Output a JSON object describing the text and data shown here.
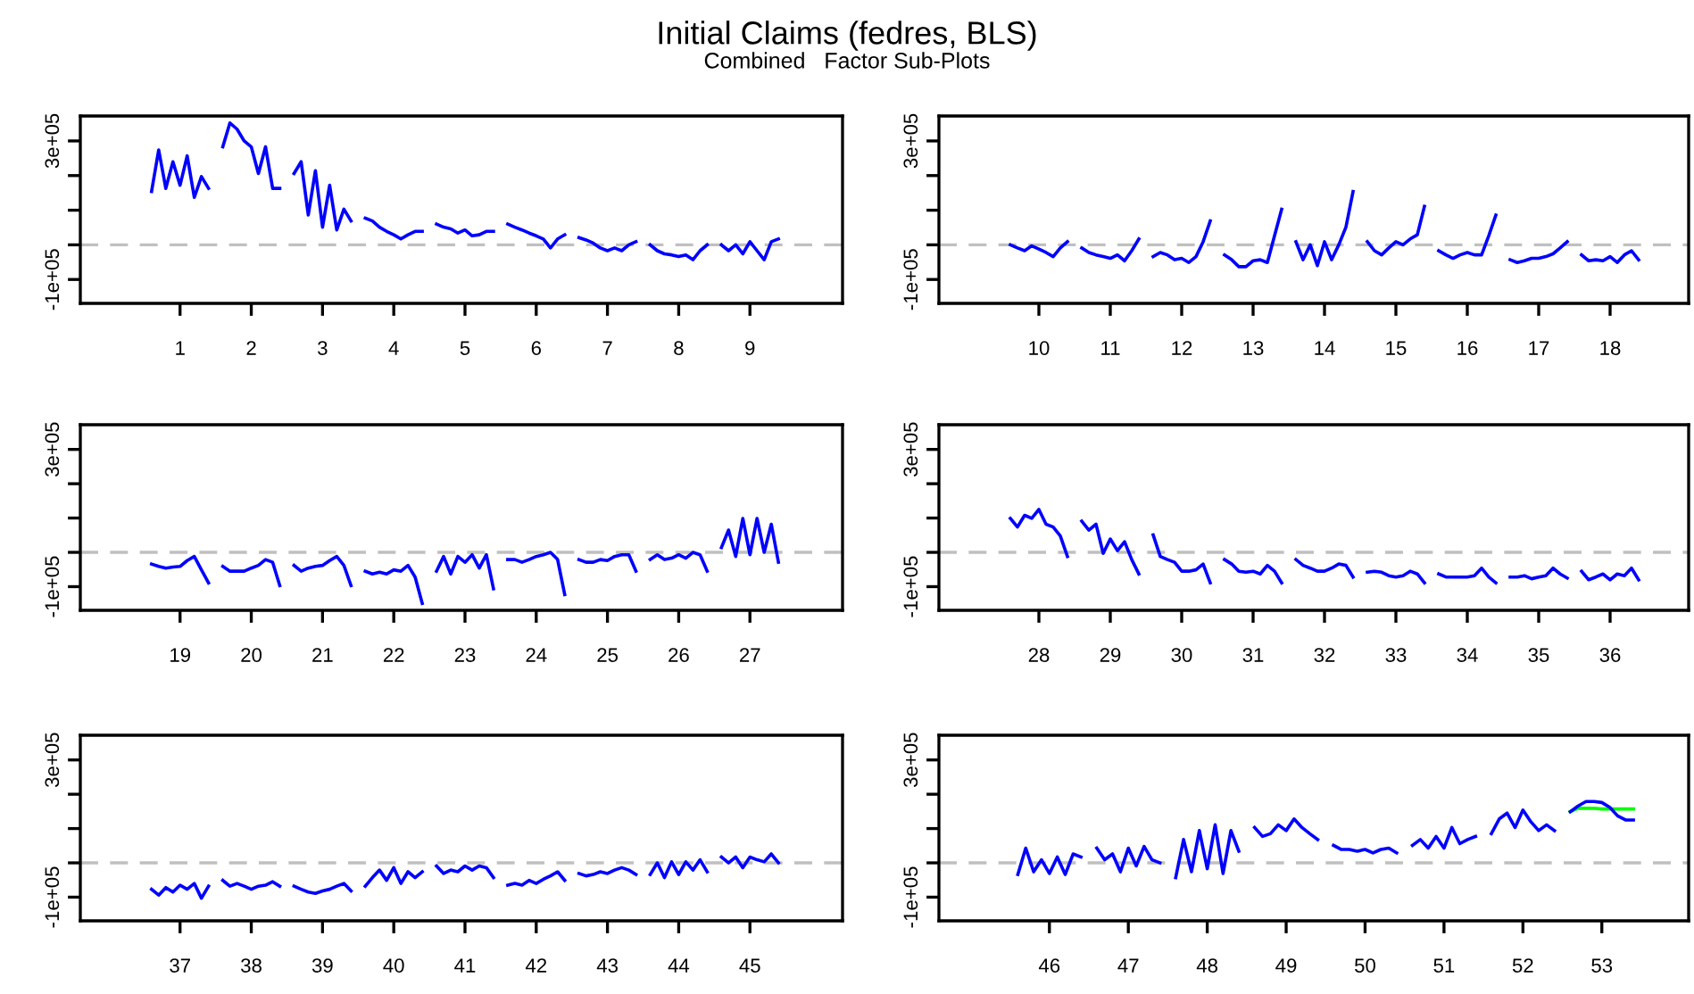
{
  "chart_data": [
    {
      "type": "line",
      "title": "Initial Claims (fedres, BLS)",
      "subtitle": "Combined   Factor Sub-Plots",
      "xlim": [
        -0.4,
        10.3
      ],
      "xticks": [
        1,
        2,
        3,
        4,
        5,
        6,
        7,
        8,
        9
      ],
      "ylim": [
        -169000,
        372000
      ],
      "yticks": [
        {
          "value": -100000,
          "label": "-1e+05"
        },
        {
          "value": 0,
          "label": null
        },
        {
          "value": 100000,
          "label": null
        },
        {
          "value": 200000,
          "label": null
        },
        {
          "value": 300000,
          "label": "3e+05"
        }
      ],
      "ref_lines": [
        {
          "axis": "y",
          "value": 0,
          "color": "#c0c0c0",
          "line_style": "dashed"
        }
      ],
      "series": [
        {
          "color": "#0000ff",
          "x": [
            0.6,
            0.7,
            0.8,
            0.9,
            1,
            1.1,
            1.2,
            1.3,
            1.4
          ],
          "values": [
            154000,
            274000,
            163000,
            240000,
            172000,
            257000,
            137000,
            197000,
            163000
          ]
        },
        {
          "color": "#0000ff",
          "x": [
            1.6,
            1.7,
            1.8,
            1.9,
            2,
            2.1,
            2.2,
            2.3,
            2.4
          ],
          "values": [
            283000,
            352000,
            334000,
            300000,
            283000,
            206000,
            283000,
            163000,
            163000
          ]
        },
        {
          "color": "#0000ff",
          "x": [
            2.6,
            2.7,
            2.8,
            2.9,
            3,
            3.1,
            3.2,
            3.3,
            3.4
          ],
          "values": [
            206000,
            240000,
            86000,
            214000,
            51000,
            172000,
            43000,
            103000,
            69000
          ]
        },
        {
          "color": "#0000ff",
          "x": [
            3.6,
            3.7,
            3.8,
            3.9,
            4,
            4.1,
            4.2,
            4.3,
            4.4
          ],
          "values": [
            77000,
            69000,
            51000,
            39000,
            29000,
            17000,
            29000,
            39000,
            39000
          ]
        },
        {
          "color": "#0000ff",
          "x": [
            4.6,
            4.7,
            4.8,
            4.9,
            5,
            5.1,
            5.2,
            5.3,
            5.4
          ],
          "values": [
            60000,
            51000,
            46000,
            34000,
            43000,
            26000,
            29000,
            39000,
            39000
          ]
        },
        {
          "color": "#0000ff",
          "x": [
            5.6,
            5.7,
            5.8,
            5.9,
            6,
            6.1,
            6.2,
            6.3,
            6.4
          ],
          "values": [
            60000,
            51000,
            43000,
            34000,
            26000,
            17000,
            -9000,
            17000,
            29000
          ]
        },
        {
          "color": "#0000ff",
          "x": [
            6.6,
            6.7,
            6.8,
            6.9,
            7,
            7.1,
            7.2,
            7.3,
            7.4
          ],
          "values": [
            21000,
            14000,
            5000,
            -9000,
            -17000,
            -9000,
            -17000,
            0,
            9000
          ]
        },
        {
          "color": "#0000ff",
          "x": [
            7.6,
            7.7,
            7.8,
            7.9,
            8,
            8.1,
            8.2,
            8.3,
            8.4
          ],
          "values": [
            0,
            -17000,
            -26000,
            -29000,
            -34000,
            -29000,
            -43000,
            -17000,
            0
          ]
        },
        {
          "color": "#0000ff",
          "x": [
            8.6,
            8.7,
            8.8,
            8.9,
            9,
            9.1,
            9.2,
            9.3,
            9.4
          ],
          "values": [
            0,
            -17000,
            0,
            -26000,
            9000,
            -17000,
            -43000,
            9000,
            17000
          ]
        }
      ]
    },
    {
      "type": "line",
      "xlim": [
        8.6,
        19.1
      ],
      "xticks": [
        10,
        11,
        12,
        13,
        14,
        15,
        16,
        17,
        18
      ],
      "ylim": [
        -169000,
        372000
      ],
      "yticks": [
        {
          "value": -100000,
          "label": "-1e+05"
        },
        {
          "value": 0,
          "label": null
        },
        {
          "value": 100000,
          "label": null
        },
        {
          "value": 200000,
          "label": null
        },
        {
          "value": 300000,
          "label": "3e+05"
        }
      ],
      "ref_lines": [
        {
          "axis": "y",
          "value": 0,
          "color": "#c0c0c0",
          "line_style": "dashed"
        }
      ],
      "series": [
        {
          "color": "#0000ff",
          "x": [
            9.6,
            9.7,
            9.8,
            9.9,
            10,
            10.1,
            10.2,
            10.3,
            10.4
          ],
          "values": [
            0,
            -9000,
            -17000,
            -3000,
            -12000,
            -22000,
            -34000,
            -9000,
            9000
          ]
        },
        {
          "color": "#0000ff",
          "x": [
            10.6,
            10.7,
            10.8,
            10.9,
            11,
            11.1,
            11.2,
            11.3,
            11.4
          ],
          "values": [
            -9000,
            -22000,
            -29000,
            -34000,
            -39000,
            -29000,
            -46000,
            -17000,
            17000
          ]
        },
        {
          "color": "#0000ff",
          "x": [
            11.6,
            11.7,
            11.8,
            11.9,
            12,
            12.1,
            12.2,
            12.3,
            12.4
          ],
          "values": [
            -34000,
            -22000,
            -29000,
            -43000,
            -39000,
            -51000,
            -34000,
            9000,
            69000
          ]
        },
        {
          "color": "#0000ff",
          "x": [
            12.6,
            12.7,
            12.8,
            12.9,
            13,
            13.1,
            13.2,
            13.3,
            13.4
          ],
          "values": [
            -29000,
            -43000,
            -63000,
            -63000,
            -46000,
            -43000,
            -51000,
            26000,
            103000
          ]
        },
        {
          "color": "#0000ff",
          "x": [
            13.6,
            13.7,
            13.8,
            13.9,
            14,
            14.1,
            14.2,
            14.3,
            14.4
          ],
          "values": [
            9000,
            -43000,
            0,
            -60000,
            9000,
            -43000,
            0,
            51000,
            154000
          ]
        },
        {
          "color": "#0000ff",
          "x": [
            14.6,
            14.7,
            14.8,
            14.9,
            15,
            15.1,
            15.2,
            15.3,
            15.4
          ],
          "values": [
            9000,
            -17000,
            -29000,
            -9000,
            9000,
            0,
            17000,
            29000,
            111000
          ]
        },
        {
          "color": "#0000ff",
          "x": [
            15.6,
            15.7,
            15.8,
            15.9,
            16,
            16.1,
            16.2,
            16.3,
            16.4
          ],
          "values": [
            -17000,
            -29000,
            -39000,
            -29000,
            -22000,
            -29000,
            -29000,
            26000,
            86000
          ]
        },
        {
          "color": "#0000ff",
          "x": [
            16.6,
            16.7,
            16.8,
            16.9,
            17,
            17.1,
            17.2,
            17.3,
            17.4
          ],
          "values": [
            -43000,
            -51000,
            -46000,
            -39000,
            -39000,
            -34000,
            -26000,
            -9000,
            9000
          ]
        },
        {
          "color": "#0000ff",
          "x": [
            17.6,
            17.7,
            17.8,
            17.9,
            18,
            18.1,
            18.2,
            18.3,
            18.4
          ],
          "values": [
            -29000,
            -46000,
            -43000,
            -46000,
            -34000,
            -51000,
            -29000,
            -17000,
            -43000
          ]
        }
      ]
    },
    {
      "type": "line",
      "xlim": [
        17.6,
        28.3
      ],
      "xticks": [
        19,
        20,
        21,
        22,
        23,
        24,
        25,
        26,
        27
      ],
      "ylim": [
        -169000,
        372000
      ],
      "yticks": [
        {
          "value": -100000,
          "label": "-1e+05"
        },
        {
          "value": 0,
          "label": null
        },
        {
          "value": 100000,
          "label": null
        },
        {
          "value": 200000,
          "label": null
        },
        {
          "value": 300000,
          "label": "3e+05"
        }
      ],
      "ref_lines": [
        {
          "axis": "y",
          "value": 0,
          "color": "#c0c0c0",
          "line_style": "dashed"
        }
      ],
      "series": [
        {
          "color": "#0000ff",
          "x": [
            18.6,
            18.7,
            18.8,
            18.9,
            19,
            19.1,
            19.2,
            19.3,
            19.4
          ],
          "values": [
            -34000,
            -41000,
            -46000,
            -43000,
            -41000,
            -24000,
            -12000,
            -51000,
            -89000
          ]
        },
        {
          "color": "#0000ff",
          "x": [
            19.6,
            19.7,
            19.8,
            19.9,
            20,
            20.1,
            20.2,
            20.3,
            20.4
          ],
          "values": [
            -41000,
            -55000,
            -55000,
            -55000,
            -46000,
            -38000,
            -21000,
            -29000,
            -97000
          ]
        },
        {
          "color": "#0000ff",
          "x": [
            20.6,
            20.7,
            20.8,
            20.9,
            21,
            21.1,
            21.2,
            21.3,
            21.4
          ],
          "values": [
            -38000,
            -55000,
            -46000,
            -41000,
            -38000,
            -24000,
            -12000,
            -38000,
            -97000
          ]
        },
        {
          "color": "#0000ff",
          "x": [
            21.6,
            21.7,
            21.8,
            21.9,
            22,
            22.1,
            22.2,
            22.3,
            22.4
          ],
          "values": [
            -55000,
            -63000,
            -58000,
            -63000,
            -51000,
            -55000,
            -38000,
            -72000,
            -149000
          ]
        },
        {
          "color": "#0000ff",
          "x": [
            22.6,
            22.7,
            22.8,
            22.9,
            23,
            23.1,
            23.2,
            23.3,
            23.4
          ],
          "values": [
            -55000,
            -12000,
            -63000,
            -12000,
            -29000,
            -7000,
            -46000,
            -7000,
            -106000
          ]
        },
        {
          "color": "#0000ff",
          "x": [
            23.6,
            23.7,
            23.8,
            23.9,
            24,
            24.1,
            24.2,
            24.3,
            24.4
          ],
          "values": [
            -21000,
            -21000,
            -29000,
            -21000,
            -12000,
            -7000,
            0,
            -21000,
            -123000
          ]
        },
        {
          "color": "#0000ff",
          "x": [
            24.6,
            24.7,
            24.8,
            24.9,
            25,
            25.1,
            25.2,
            25.3,
            25.4
          ],
          "values": [
            -21000,
            -29000,
            -29000,
            -21000,
            -24000,
            -12000,
            -7000,
            -7000,
            -55000
          ]
        },
        {
          "color": "#0000ff",
          "x": [
            25.6,
            25.7,
            25.8,
            25.9,
            26,
            26.1,
            26.2,
            26.3,
            26.4
          ],
          "values": [
            -21000,
            -7000,
            -21000,
            -17000,
            -7000,
            -17000,
            0,
            -7000,
            -55000
          ]
        },
        {
          "color": "#0000ff",
          "x": [
            26.6,
            26.7,
            26.8,
            26.9,
            27,
            27.1,
            27.2,
            27.3,
            27.4
          ],
          "values": [
            14000,
            65000,
            -12000,
            99000,
            -7000,
            99000,
            0,
            82000,
            -29000
          ]
        }
      ]
    },
    {
      "type": "line",
      "xlim": [
        26.6,
        37.1
      ],
      "xticks": [
        28,
        29,
        30,
        31,
        32,
        33,
        34,
        35,
        36
      ],
      "ylim": [
        -169000,
        372000
      ],
      "yticks": [
        {
          "value": -100000,
          "label": "-1e+05"
        },
        {
          "value": 0,
          "label": null
        },
        {
          "value": 100000,
          "label": null
        },
        {
          "value": 200000,
          "label": null
        },
        {
          "value": 300000,
          "label": "3e+05"
        }
      ],
      "ref_lines": [
        {
          "axis": "y",
          "value": 0,
          "color": "#c0c0c0",
          "line_style": "dashed"
        }
      ],
      "series": [
        {
          "color": "#0000ff",
          "x": [
            27.6,
            27.7,
            27.8,
            27.9,
            28,
            28.1,
            28.2,
            28.3,
            28.4
          ],
          "values": [
            99000,
            74000,
            108000,
            99000,
            125000,
            82000,
            74000,
            48000,
            -12000
          ]
        },
        {
          "color": "#0000ff",
          "x": [
            28.6,
            28.7,
            28.8,
            28.9,
            29,
            29.1,
            29.2,
            29.3,
            29.4
          ],
          "values": [
            91000,
            65000,
            82000,
            -3000,
            39000,
            5000,
            31000,
            -21000,
            -63000
          ]
        },
        {
          "color": "#0000ff",
          "x": [
            29.6,
            29.7,
            29.8,
            29.9,
            30,
            30.1,
            30.2,
            30.3,
            30.4
          ],
          "values": [
            51000,
            -12000,
            -21000,
            -29000,
            -55000,
            -55000,
            -51000,
            -34000,
            -89000
          ]
        },
        {
          "color": "#0000ff",
          "x": [
            30.6,
            30.7,
            30.8,
            30.9,
            31,
            31.1,
            31.2,
            31.3,
            31.4
          ],
          "values": [
            -21000,
            -34000,
            -55000,
            -58000,
            -55000,
            -63000,
            -38000,
            -55000,
            -89000
          ]
        },
        {
          "color": "#0000ff",
          "x": [
            31.6,
            31.7,
            31.8,
            31.9,
            32,
            32.1,
            32.2,
            32.3,
            32.4
          ],
          "values": [
            -21000,
            -38000,
            -46000,
            -55000,
            -55000,
            -46000,
            -34000,
            -38000,
            -72000
          ]
        },
        {
          "color": "#0000ff",
          "x": [
            32.6,
            32.7,
            32.8,
            32.9,
            33,
            33.1,
            33.2,
            33.3,
            33.4
          ],
          "values": [
            -58000,
            -55000,
            -58000,
            -68000,
            -72000,
            -68000,
            -55000,
            -63000,
            -89000
          ]
        },
        {
          "color": "#0000ff",
          "x": [
            33.6,
            33.7,
            33.8,
            33.9,
            34,
            34.1,
            34.2,
            34.3,
            34.4
          ],
          "values": [
            -63000,
            -72000,
            -72000,
            -72000,
            -72000,
            -68000,
            -46000,
            -72000,
            -89000
          ]
        },
        {
          "color": "#0000ff",
          "x": [
            34.6,
            34.7,
            34.8,
            34.9,
            35,
            35.1,
            35.2,
            35.3,
            35.4
          ],
          "values": [
            -72000,
            -72000,
            -68000,
            -77000,
            -72000,
            -68000,
            -46000,
            -63000,
            -75000
          ]
        },
        {
          "color": "#0000ff",
          "x": [
            35.6,
            35.7,
            35.8,
            35.9,
            36,
            36.1,
            36.2,
            36.3,
            36.4
          ],
          "values": [
            -55000,
            -80000,
            -72000,
            -63000,
            -80000,
            -63000,
            -68000,
            -46000,
            -80000
          ]
        }
      ]
    },
    {
      "type": "line",
      "xlim": [
        35.6,
        46.3
      ],
      "xticks": [
        37,
        38,
        39,
        40,
        41,
        42,
        43,
        44,
        45
      ],
      "ylim": [
        -169000,
        372000
      ],
      "yticks": [
        {
          "value": -100000,
          "label": "-1e+05"
        },
        {
          "value": 0,
          "label": null
        },
        {
          "value": 100000,
          "label": null
        },
        {
          "value": 200000,
          "label": null
        },
        {
          "value": 300000,
          "label": "3e+05"
        }
      ],
      "ref_lines": [
        {
          "axis": "y",
          "value": 0,
          "color": "#c0c0c0",
          "line_style": "dashed"
        }
      ],
      "series": [
        {
          "color": "#0000ff",
          "x": [
            36.6,
            36.7,
            36.8,
            36.9,
            37,
            37.1,
            37.2,
            37.3,
            37.4
          ],
          "values": [
            -77000,
            -94000,
            -72000,
            -85000,
            -65000,
            -77000,
            -60000,
            -103000,
            -68000
          ]
        },
        {
          "color": "#0000ff",
          "x": [
            37.6,
            37.7,
            37.8,
            37.9,
            38,
            38.1,
            38.2,
            38.3,
            38.4
          ],
          "values": [
            -51000,
            -68000,
            -60000,
            -68000,
            -77000,
            -68000,
            -65000,
            -55000,
            -68000
          ]
        },
        {
          "color": "#0000ff",
          "x": [
            38.6,
            38.7,
            38.8,
            38.9,
            39,
            39.1,
            39.2,
            39.3,
            39.4
          ],
          "values": [
            -68000,
            -77000,
            -85000,
            -89000,
            -82000,
            -77000,
            -68000,
            -60000,
            -82000
          ]
        },
        {
          "color": "#0000ff",
          "x": [
            39.6,
            39.7,
            39.8,
            39.9,
            40,
            40.1,
            40.2,
            40.3,
            40.4
          ],
          "values": [
            -68000,
            -43000,
            -21000,
            -51000,
            -14000,
            -60000,
            -26000,
            -43000,
            -26000
          ]
        },
        {
          "color": "#0000ff",
          "x": [
            40.6,
            40.7,
            40.8,
            40.9,
            41,
            41.1,
            41.2,
            41.3,
            41.4
          ],
          "values": [
            -9000,
            -31000,
            -21000,
            -26000,
            -9000,
            -21000,
            -9000,
            -14000,
            -43000
          ]
        },
        {
          "color": "#0000ff",
          "x": [
            41.6,
            41.7,
            41.8,
            41.9,
            42,
            42.1,
            42.2,
            42.3,
            42.4
          ],
          "values": [
            -65000,
            -60000,
            -65000,
            -51000,
            -60000,
            -48000,
            -38000,
            -26000,
            -51000
          ]
        },
        {
          "color": "#0000ff",
          "x": [
            42.6,
            42.7,
            42.8,
            42.9,
            43,
            43.1,
            43.2,
            43.3,
            43.4
          ],
          "values": [
            -31000,
            -38000,
            -34000,
            -26000,
            -31000,
            -21000,
            -14000,
            -21000,
            -34000
          ]
        },
        {
          "color": "#0000ff",
          "x": [
            43.6,
            43.7,
            43.8,
            43.9,
            44,
            44.1,
            44.2,
            44.3,
            44.4
          ],
          "values": [
            -34000,
            0,
            -43000,
            3000,
            -34000,
            3000,
            -21000,
            9000,
            -26000
          ]
        },
        {
          "color": "#0000ff",
          "x": [
            44.6,
            44.7,
            44.8,
            44.9,
            45,
            45.1,
            45.2,
            45.3,
            45.4
          ],
          "values": [
            17000,
            0,
            17000,
            -14000,
            17000,
            9000,
            3000,
            26000,
            0
          ]
        }
      ]
    },
    {
      "type": "line",
      "xlim": [
        44.6,
        54.1
      ],
      "xticks": [
        46,
        47,
        48,
        49,
        50,
        51,
        52,
        53
      ],
      "ylim": [
        -169000,
        372000
      ],
      "yticks": [
        {
          "value": -100000,
          "label": "-1e+05"
        },
        {
          "value": 0,
          "label": null
        },
        {
          "value": 100000,
          "label": null
        },
        {
          "value": 200000,
          "label": null
        },
        {
          "value": 300000,
          "label": "3e+05"
        }
      ],
      "ref_lines": [
        {
          "axis": "y",
          "value": 0,
          "color": "#c0c0c0",
          "line_style": "dashed"
        }
      ],
      "series": [
        {
          "color": "#0000ff",
          "x": [
            45.6,
            45.7,
            45.8,
            45.9,
            46,
            46.1,
            46.2,
            46.3,
            46.4
          ],
          "values": [
            -34000,
            43000,
            -26000,
            9000,
            -31000,
            17000,
            -34000,
            26000,
            17000
          ]
        },
        {
          "color": "#0000ff",
          "x": [
            46.6,
            46.7,
            46.8,
            46.9,
            47,
            47.1,
            47.2,
            47.3,
            47.4
          ],
          "values": [
            43000,
            9000,
            26000,
            -26000,
            43000,
            -9000,
            48000,
            9000,
            0
          ]
        },
        {
          "color": "#0000ff",
          "x": [
            47.6,
            47.7,
            47.8,
            47.9,
            48,
            48.1,
            48.2,
            48.3,
            48.4
          ],
          "values": [
            -43000,
            68000,
            -26000,
            94000,
            -17000,
            111000,
            -31000,
            94000,
            34000
          ]
        },
        {
          "color": "#0000ff",
          "x": [
            48.6,
            48.7,
            48.8,
            48.9,
            49,
            49.1,
            49.2,
            49.3,
            49.4
          ],
          "values": [
            103000,
            77000,
            85000,
            111000,
            94000,
            128000,
            103000,
            85000,
            68000
          ]
        },
        {
          "color": "#0000ff",
          "x": [
            49.6,
            49.7,
            49.8,
            49.9,
            50,
            50.1,
            50.2,
            50.3,
            50.4
          ],
          "values": [
            51000,
            39000,
            39000,
            34000,
            39000,
            29000,
            39000,
            43000,
            29000
          ]
        },
        {
          "color": "#0000ff",
          "x": [
            50.6,
            50.7,
            50.8,
            50.9,
            51,
            51.1,
            51.2,
            51.3,
            51.4
          ],
          "values": [
            51000,
            68000,
            43000,
            77000,
            43000,
            103000,
            56000,
            68000,
            77000
          ]
        },
        {
          "color": "#0000ff",
          "x": [
            51.6,
            51.7,
            51.8,
            51.9,
            52,
            52.1,
            52.2,
            52.3,
            52.4
          ],
          "values": [
            85000,
            128000,
            145000,
            103000,
            154000,
            120000,
            94000,
            111000,
            94000
          ]
        },
        {
          "color": "#00ff00",
          "x": [
            52.6,
            52.7,
            52.8,
            52.9,
            53,
            53.1,
            53.2,
            53.3,
            53.4
          ],
          "values": [
            149000,
            159000,
            159000,
            159000,
            157000,
            157000,
            157000,
            157000,
            157000
          ]
        },
        {
          "color": "#0000ff",
          "x": [
            52.6,
            52.7,
            52.8,
            52.9,
            53,
            53.1,
            53.2,
            53.3,
            53.4
          ],
          "values": [
            149000,
            166000,
            179000,
            179000,
            176000,
            162000,
            137000,
            125000,
            125000
          ]
        }
      ]
    }
  ]
}
